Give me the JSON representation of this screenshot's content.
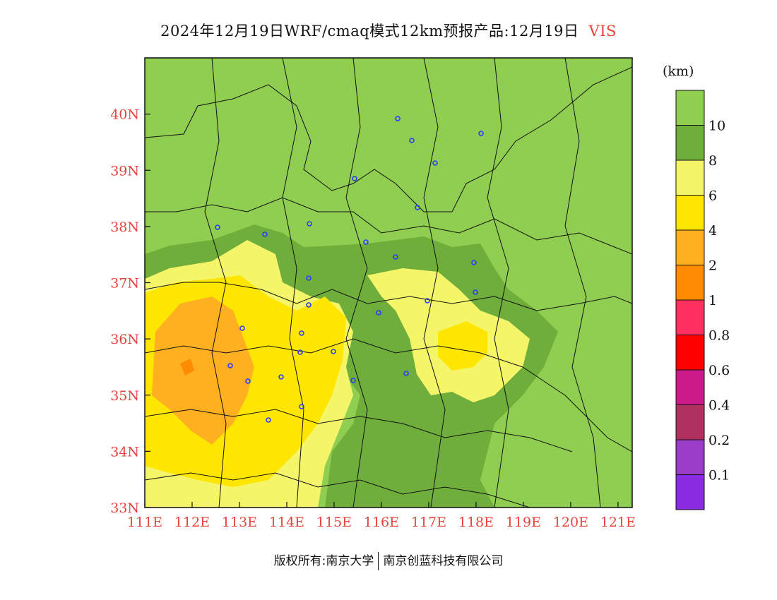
{
  "title": {
    "main": "2024年12月19日WRF/cmaq模式12km预报产品:12月19日",
    "variable": "VIS"
  },
  "colorbar": {
    "unit": "(km)",
    "levels": [
      "0.1",
      "0.2",
      "0.4",
      "0.6",
      "0.8",
      "1",
      "2",
      "4",
      "6",
      "8",
      "10"
    ],
    "colors": [
      "#8a2be2",
      "#9a3cc8",
      "#b03060",
      "#cc1a8a",
      "#ff0000",
      "#ff3060",
      "#ff8c00",
      "#ffb020",
      "#ffe600",
      "#f5f56a",
      "#6fae3a",
      "#8fce50"
    ]
  },
  "axes": {
    "x_ticks": [
      "111E",
      "112E",
      "113E",
      "114E",
      "115E",
      "116E",
      "117E",
      "118E",
      "119E",
      "120E",
      "121E"
    ],
    "y_ticks": [
      "33N",
      "34N",
      "35N",
      "36N",
      "37N",
      "38N",
      "39N",
      "40N"
    ],
    "lon_range": [
      111,
      121.3
    ],
    "lat_range": [
      33,
      41
    ]
  },
  "footer": {
    "left": "版权所有:南京大学",
    "right": "南京创蓝科技有限公司"
  }
}
